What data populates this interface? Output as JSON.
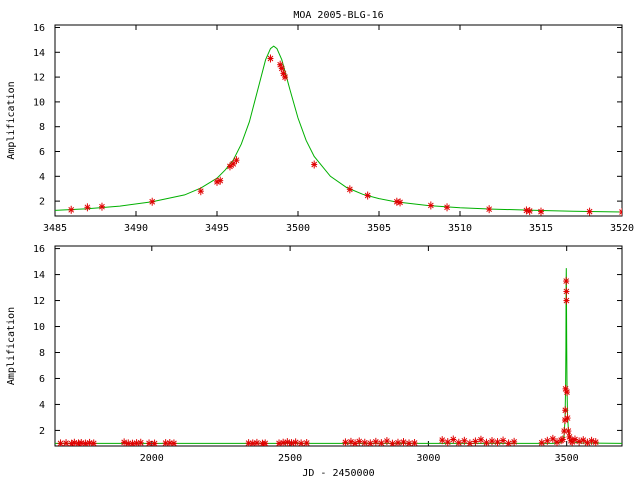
{
  "chart_data": [
    {
      "type": "line",
      "title": "MOA 2005-BLG-16",
      "xlabel": "",
      "ylabel": "Amplification",
      "xlim": [
        3485,
        3520
      ],
      "ylim": [
        0.8,
        16.2
      ],
      "xticks": [
        3485,
        3490,
        3495,
        3500,
        3505,
        3510,
        3515,
        3520
      ],
      "yticks": [
        2,
        4,
        6,
        8,
        10,
        12,
        14,
        16
      ],
      "grid": false,
      "series": [
        {
          "kind": "model",
          "color": "#00b000",
          "x": [
            3485,
            3487,
            3489,
            3491,
            3493,
            3494,
            3495,
            3495.5,
            3496,
            3496.5,
            3497,
            3497.5,
            3498,
            3498.3,
            3498.5,
            3498.7,
            3499,
            3499.5,
            3500,
            3500.5,
            3501,
            3502,
            3503,
            3504,
            3505,
            3506,
            3508,
            3510,
            3512,
            3515,
            3517,
            3520
          ],
          "y": [
            1.25,
            1.38,
            1.6,
            1.95,
            2.5,
            3.05,
            3.85,
            4.5,
            5.3,
            6.6,
            8.4,
            10.9,
            13.4,
            14.3,
            14.5,
            14.3,
            13.4,
            11.0,
            8.7,
            6.9,
            5.6,
            4.0,
            3.1,
            2.55,
            2.2,
            1.95,
            1.65,
            1.47,
            1.36,
            1.24,
            1.18,
            1.12
          ]
        },
        {
          "kind": "observations",
          "color": "#e00000",
          "x": [
            3486.0,
            3487.0,
            3487.9,
            3491.0,
            3494.0,
            3495.0,
            3495.2,
            3495.8,
            3496.0,
            3496.2,
            3498.3,
            3498.9,
            3499.0,
            3499.1,
            3499.2,
            3501.0,
            3503.2,
            3504.3,
            3506.1,
            3506.3,
            3508.2,
            3509.2,
            3511.8,
            3514.1,
            3514.3,
            3515.0,
            3518.0,
            3520.0
          ],
          "y": [
            1.3,
            1.5,
            1.55,
            1.95,
            2.8,
            3.55,
            3.65,
            4.8,
            5.0,
            5.3,
            13.5,
            13.0,
            12.7,
            12.3,
            12.0,
            4.95,
            2.95,
            2.45,
            1.95,
            1.9,
            1.65,
            1.5,
            1.35,
            1.25,
            1.2,
            1.15,
            1.15,
            1.12
          ]
        }
      ]
    },
    {
      "type": "line",
      "title": "",
      "xlabel": "JD - 2450000",
      "ylabel": "Amplification",
      "xlim": [
        1650,
        3700
      ],
      "ylim": [
        0.8,
        16.2
      ],
      "xticks": [
        2000,
        2500,
        3000,
        3500
      ],
      "yticks": [
        2,
        4,
        6,
        8,
        10,
        12,
        14,
        16
      ],
      "grid": false,
      "series": [
        {
          "kind": "model",
          "color": "#00b000",
          "x": [
            1650,
            3450,
            3480,
            3490,
            3494,
            3496,
            3497,
            3498,
            3498.5,
            3499,
            3500,
            3501,
            3503,
            3507,
            3520,
            3550,
            3700
          ],
          "y": [
            1.0,
            1.0,
            1.06,
            1.4,
            2.8,
            5.3,
            8.4,
            13.4,
            14.5,
            13.4,
            8.7,
            5.6,
            3.1,
            1.85,
            1.12,
            1.03,
            1.0
          ]
        },
        {
          "kind": "observations",
          "color": "#e00000",
          "x": [
            1670,
            1690,
            1710,
            1720,
            1735,
            1745,
            1760,
            1775,
            1790,
            1900,
            1915,
            1930,
            1945,
            1960,
            1990,
            2010,
            2050,
            2065,
            2080,
            2350,
            2365,
            2380,
            2400,
            2410,
            2460,
            2475,
            2490,
            2505,
            2520,
            2540,
            2560,
            2700,
            2720,
            2735,
            2750,
            2770,
            2790,
            2810,
            2830,
            2850,
            2870,
            2890,
            2910,
            2930,
            2950,
            3050,
            3070,
            3090,
            3110,
            3130,
            3150,
            3170,
            3190,
            3210,
            3230,
            3250,
            3270,
            3290,
            3310,
            3410,
            3430,
            3450,
            3465,
            3480,
            3486,
            3491,
            3494,
            3495,
            3496,
            3498.3,
            3499,
            3499.2,
            3501,
            3503.2,
            3506,
            3510,
            3515,
            3520,
            3530,
            3545,
            3560,
            3575,
            3590,
            3605
          ],
          "y": [
            1.0,
            1.02,
            0.98,
            1.05,
            1.0,
            1.03,
            0.99,
            1.04,
            1.0,
            1.08,
            1.0,
            0.98,
            1.02,
            1.05,
            1.0,
            0.99,
            1.02,
            1.03,
            1.0,
            1.02,
            1.0,
            1.04,
            0.98,
            1.0,
            1.0,
            1.05,
            1.1,
            1.02,
            1.08,
            1.0,
            1.03,
            1.08,
            1.12,
            1.0,
            1.15,
            1.05,
            1.0,
            1.12,
            1.02,
            1.18,
            0.98,
            1.05,
            1.1,
            1.0,
            1.03,
            1.25,
            1.1,
            1.3,
            1.05,
            1.2,
            1.0,
            1.15,
            1.28,
            1.05,
            1.18,
            1.1,
            1.22,
            1.0,
            1.12,
            1.05,
            1.2,
            1.35,
            1.1,
            1.25,
            1.3,
            1.95,
            2.8,
            3.55,
            5.2,
            13.5,
            12.7,
            12.0,
            4.95,
            2.95,
            1.95,
            1.5,
            1.2,
            1.12,
            1.3,
            1.15,
            1.25,
            1.05,
            1.2,
            1.1
          ]
        }
      ]
    }
  ]
}
